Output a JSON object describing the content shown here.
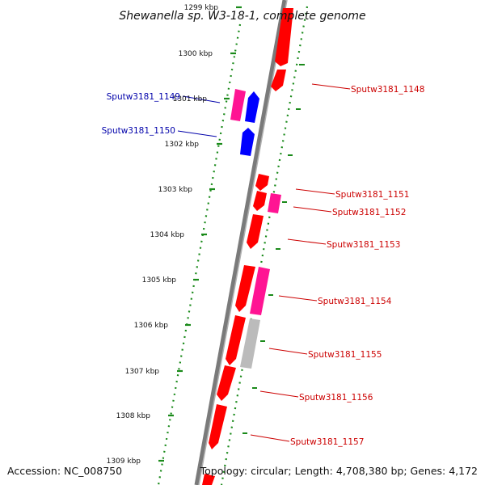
{
  "title": "Shewanella sp. W3-18-1, complete genome",
  "footer": {
    "accession": "Accession: NC_008750",
    "topology": "Topology: circular; Length: 4,708,380 bp; Genes: 4,172"
  },
  "colors": {
    "forward_gene": "#ff0000",
    "reverse_gene": "#0000ff",
    "rna_gene": "#ff1493",
    "pseudo_gene": "#bbbbbb",
    "backbone": "#888888",
    "scale_ring": "#1a8a1a",
    "label_forward": "#cc0000",
    "label_reverse": "#0000aa"
  },
  "scale_ticks": [
    {
      "label": "1299 kbp",
      "kbp": 1299
    },
    {
      "label": "1300 kbp",
      "kbp": 1300
    },
    {
      "label": "1301 kbp",
      "kbp": 1301
    },
    {
      "label": "1302 kbp",
      "kbp": 1302
    },
    {
      "label": "1303 kbp",
      "kbp": 1303
    },
    {
      "label": "1304 kbp",
      "kbp": 1304
    },
    {
      "label": "1305 kbp",
      "kbp": 1305
    },
    {
      "label": "1306 kbp",
      "kbp": 1306
    },
    {
      "label": "1307 kbp",
      "kbp": 1307
    },
    {
      "label": "1308 kbp",
      "kbp": 1308
    },
    {
      "label": "1309 kbp",
      "kbp": 1309
    }
  ],
  "gene_labels": [
    {
      "label": "Sputw3181_1148",
      "side": "right",
      "color": "#cc0000"
    },
    {
      "label": "Sputw3181_1149",
      "side": "left",
      "color": "#0000aa"
    },
    {
      "label": "Sputw3181_1150",
      "side": "left",
      "color": "#0000aa"
    },
    {
      "label": "Sputw3181_1151",
      "side": "right",
      "color": "#cc0000"
    },
    {
      "label": "Sputw3181_1152",
      "side": "right",
      "color": "#cc0000"
    },
    {
      "label": "Sputw3181_1153",
      "side": "right",
      "color": "#cc0000"
    },
    {
      "label": "Sputw3181_1154",
      "side": "right",
      "color": "#cc0000"
    },
    {
      "label": "Sputw3181_1155",
      "side": "right",
      "color": "#cc0000"
    },
    {
      "label": "Sputw3181_1156",
      "side": "right",
      "color": "#cc0000"
    },
    {
      "label": "Sputw3181_1157",
      "side": "right",
      "color": "#cc0000"
    }
  ]
}
